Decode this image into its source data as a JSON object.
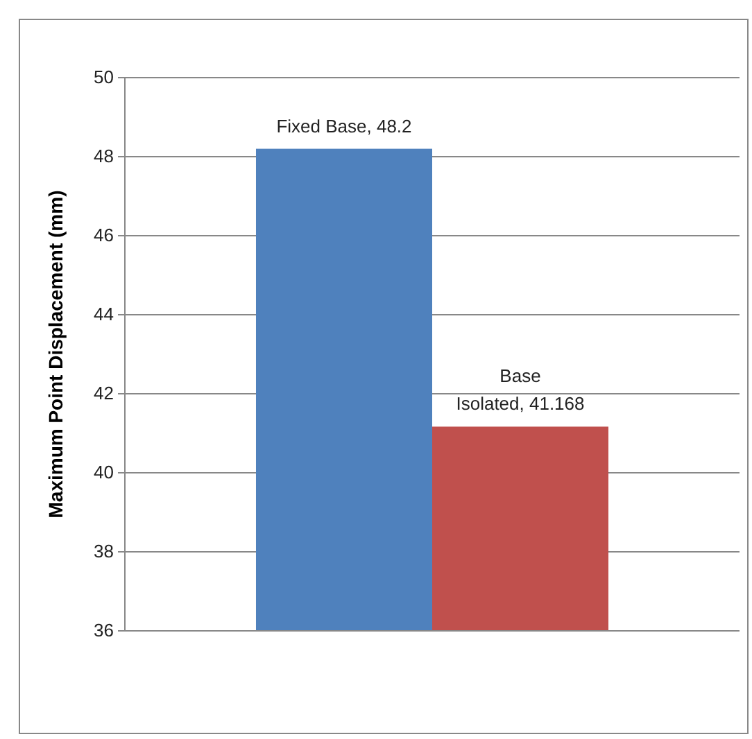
{
  "chart_data": {
    "type": "bar",
    "ylabel": "Maximum Point Displacement (mm)",
    "categories": [
      null,
      null
    ],
    "values": [
      48.2,
      41.168
    ],
    "colors": [
      "#4f81bd",
      "#c0504d"
    ],
    "value_labels": [
      "Fixed Base, 48.2",
      "Base\nIsolated, 41.168"
    ],
    "ylim": [
      36,
      50
    ],
    "yticks": [
      36,
      38,
      40,
      42,
      44,
      46,
      48,
      50
    ],
    "grid": "y"
  }
}
